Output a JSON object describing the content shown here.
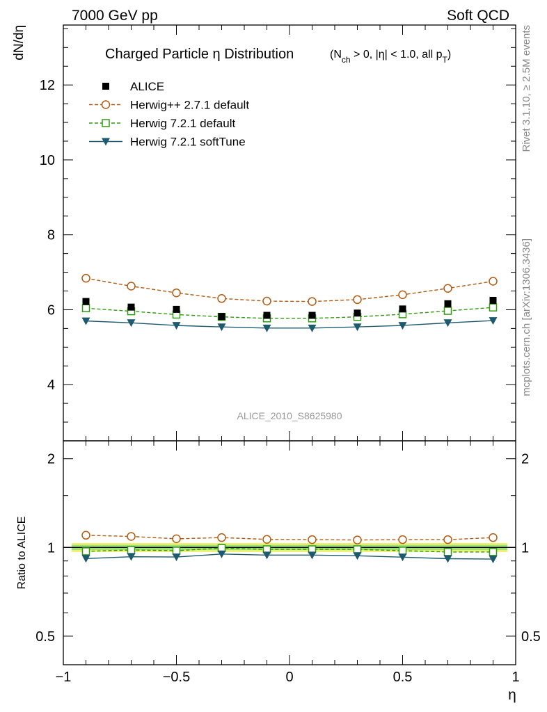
{
  "header": {
    "left": "7000 GeV pp",
    "right": "Soft QCD"
  },
  "side_labels": {
    "rivet": "Rivet 3.1.10, ≥ 2.5M events",
    "mcplots": "mcplots.cern.ch [arXiv:1306.3436]"
  },
  "analysis_id": "ALICE_2010_S8625980",
  "colors": {
    "alice": "#000000",
    "herwigpp": "#b05a10",
    "herwig721": "#2e9a10",
    "softtune": "#1e5a6e",
    "band_yellow": "#f0f070",
    "band_green": "#9ee07a"
  },
  "chart_data": [
    {
      "type": "line",
      "title": "Charged Particle η Distribution",
      "title_cuts": "(N_ch > 0, |η| < 1.0, all p_T)",
      "ylabel": "dN/dη",
      "xlim": [
        -1.0,
        1.0
      ],
      "ylim": [
        2.5,
        13.6
      ],
      "yticks": [
        4,
        6,
        8,
        10,
        12
      ],
      "ytick_labels": [
        "4",
        "6",
        "8",
        "10",
        "12"
      ],
      "x": [
        -0.9,
        -0.7,
        -0.5,
        -0.3,
        -0.1,
        0.1,
        0.3,
        0.5,
        0.7,
        0.9
      ],
      "series": [
        {
          "name": "ALICE",
          "style": "markers",
          "values": [
            6.22,
            6.07,
            6.01,
            5.82,
            5.85,
            5.85,
            5.91,
            6.02,
            6.16,
            6.25
          ]
        },
        {
          "name": "Herwig++ 2.7.1 default",
          "style": "dashed-circle",
          "values": [
            6.84,
            6.63,
            6.45,
            6.3,
            6.23,
            6.22,
            6.27,
            6.4,
            6.57,
            6.76
          ]
        },
        {
          "name": "Herwig 7.2.1 default",
          "style": "dashed-square",
          "values": [
            6.04,
            5.96,
            5.87,
            5.81,
            5.77,
            5.77,
            5.81,
            5.88,
            5.97,
            6.06
          ]
        },
        {
          "name": "Herwig 7.2.1 softTune",
          "style": "solid-triangle",
          "values": [
            5.7,
            5.65,
            5.58,
            5.54,
            5.51,
            5.51,
            5.54,
            5.58,
            5.65,
            5.71
          ]
        }
      ],
      "legend_position": "top-left",
      "grid": false
    },
    {
      "type": "line",
      "ylabel": "Ratio to ALICE",
      "xlabel": "η",
      "xlim": [
        -1.0,
        1.0
      ],
      "ylim": [
        0.4,
        2.3
      ],
      "log_y": true,
      "yticks": [
        0.5,
        1,
        2
      ],
      "ytick_labels": [
        "0.5",
        "1",
        "2"
      ],
      "xticks": [
        -1,
        -0.5,
        0,
        0.5,
        1
      ],
      "xtick_labels": [
        "−1",
        "−0.5",
        "0",
        "0.5",
        "1"
      ],
      "x": [
        -0.9,
        -0.7,
        -0.5,
        -0.3,
        -0.1,
        0.1,
        0.3,
        0.5,
        0.7,
        0.9
      ],
      "band": {
        "yellow": [
          0.965,
          1.035
        ],
        "green": [
          0.98,
          1.02
        ]
      },
      "series": [
        {
          "name": "Herwig++ 2.7.1 default",
          "style": "dashed-circle",
          "values": [
            1.1,
            1.09,
            1.07,
            1.08,
            1.065,
            1.063,
            1.06,
            1.063,
            1.063,
            1.08
          ]
        },
        {
          "name": "Herwig 7.2.1 default",
          "style": "dashed-square",
          "values": [
            0.97,
            0.98,
            0.975,
            0.995,
            0.985,
            0.985,
            0.985,
            0.975,
            0.965,
            0.965
          ]
        },
        {
          "name": "Herwig 7.2.1 softTune",
          "style": "solid-triangle",
          "values": [
            0.917,
            0.93,
            0.928,
            0.95,
            0.942,
            0.942,
            0.937,
            0.927,
            0.916,
            0.913
          ]
        }
      ],
      "grid": false
    }
  ]
}
